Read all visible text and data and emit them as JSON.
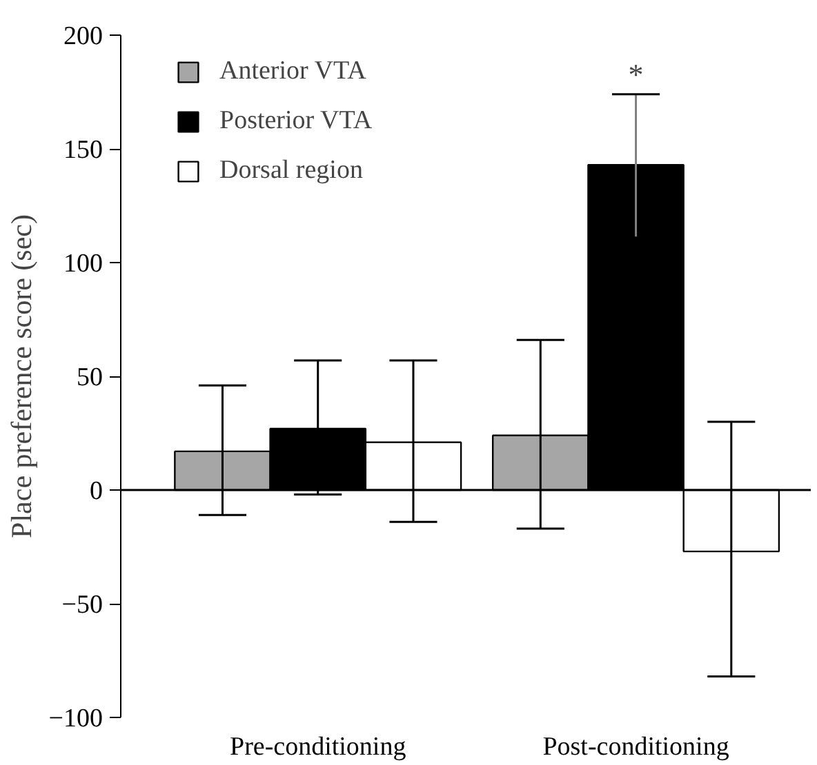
{
  "chart_data": {
    "type": "bar",
    "ylabel": "Place preference score (sec)",
    "categories": [
      "Pre-conditioning",
      "Post-conditioning"
    ],
    "series": [
      {
        "name": "Anterior VTA",
        "color": "#a6a6a6",
        "values": [
          17,
          24
        ],
        "errors": [
          [
            -11,
            46
          ],
          [
            -17,
            66
          ]
        ]
      },
      {
        "name": "Posterior VTA",
        "color": "#000000",
        "values": [
          27,
          143
        ],
        "errors": [
          [
            -2,
            57
          ],
          [
            111,
            174
          ]
        ]
      },
      {
        "name": "Dorsal region",
        "color": "#ffffff",
        "values": [
          21,
          -27
        ],
        "errors": [
          [
            -14,
            57
          ],
          [
            -82,
            30
          ]
        ]
      }
    ],
    "ylim": [
      -100,
      200
    ],
    "yticks": [
      -100,
      -50,
      0,
      50,
      100,
      150,
      200
    ],
    "grid": false,
    "legend": "top left",
    "ref_lines": [
      {
        "axis": "y",
        "value": 0
      }
    ],
    "annotations": [
      {
        "text": "*",
        "x": "Post-conditioning",
        "y": 174
      }
    ]
  }
}
